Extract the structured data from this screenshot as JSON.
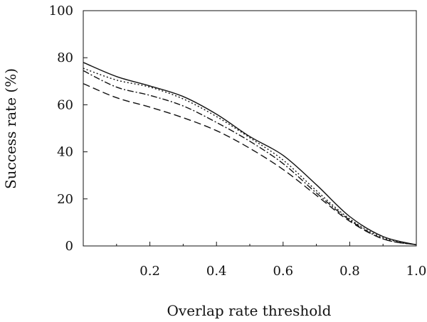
{
  "chart_data": {
    "type": "line",
    "xlabel": "Overlap rate threshold",
    "ylabel": "Success rate (%)",
    "xlim": [
      0.0,
      1.0
    ],
    "ylim": [
      0,
      100
    ],
    "x_ticks": [
      0.2,
      0.4,
      0.6,
      0.8,
      1.0
    ],
    "x_tick_labels": [
      "0.2",
      "0.4",
      "0.6",
      "0.8",
      "1.0"
    ],
    "y_ticks": [
      0,
      20,
      40,
      60,
      80,
      100
    ],
    "y_tick_labels": [
      "0",
      "20",
      "40",
      "60",
      "80",
      "100"
    ],
    "grid": false,
    "legend": "none",
    "x": [
      0.0,
      0.1,
      0.2,
      0.3,
      0.4,
      0.5,
      0.6,
      0.7,
      0.8,
      0.9,
      1.0
    ],
    "series": [
      {
        "style": "solid",
        "values": [
          78.0,
          72.0,
          68.0,
          63.5,
          56.0,
          46.5,
          38.5,
          26.0,
          12.5,
          4.0,
          0.5
        ]
      },
      {
        "style": "dotted",
        "values": [
          75.5,
          70.5,
          67.5,
          62.5,
          55.0,
          46.0,
          36.5,
          23.5,
          11.5,
          3.5,
          0.5
        ]
      },
      {
        "style": "dash-dot",
        "values": [
          74.5,
          67.5,
          64.0,
          59.5,
          52.5,
          44.5,
          35.0,
          22.5,
          11.0,
          3.0,
          0.5
        ]
      },
      {
        "style": "dashed",
        "values": [
          69.0,
          63.0,
          59.0,
          54.5,
          49.0,
          41.5,
          32.5,
          21.5,
          10.5,
          3.0,
          0.5
        ]
      }
    ]
  }
}
